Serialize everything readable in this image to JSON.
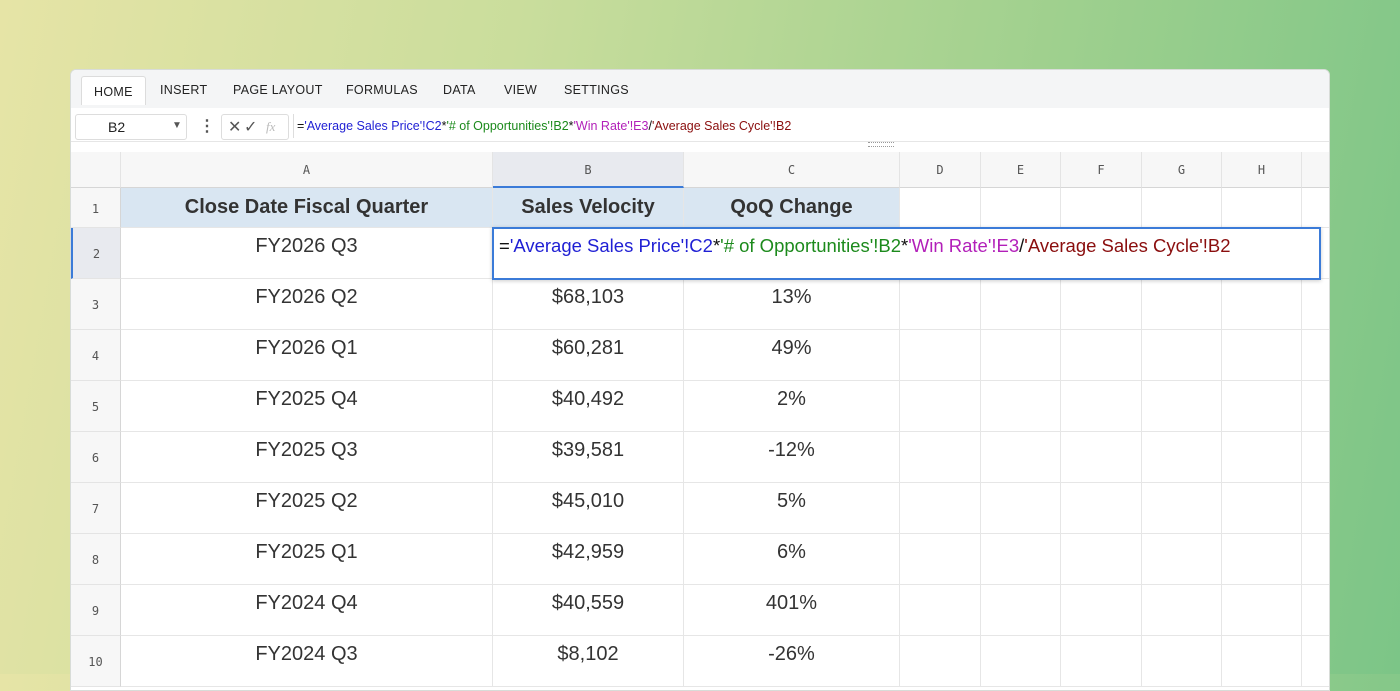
{
  "ribbon": {
    "tabs": [
      "HOME",
      "INSERT",
      "PAGE LAYOUT",
      "FORMULAS",
      "DATA",
      "VIEW",
      "SETTINGS"
    ]
  },
  "formula_bar": {
    "name_box": "B2",
    "fx_label": "fx",
    "formula": [
      "=",
      "'Average Sales Price'!C2",
      "*",
      "'# of Opportunities'!B2",
      "*",
      "'Win Rate'!E3",
      "/",
      "'Average Sales Cycle'!B2"
    ]
  },
  "grid": {
    "columns": [
      "A",
      "B",
      "C",
      "D",
      "E",
      "F",
      "G",
      "H"
    ],
    "row_numbers": [
      "1",
      "2",
      "3",
      "4",
      "5",
      "6",
      "7",
      "8",
      "9",
      "10"
    ]
  },
  "table": {
    "header": [
      "Close Date Fiscal Quarter",
      "Sales Velocity",
      "QoQ Change"
    ],
    "rows": [
      [
        "FY2026 Q3"
      ],
      [
        "FY2026 Q2",
        "$68,103",
        "13%"
      ],
      [
        "FY2026 Q1",
        "$60,281",
        "49%"
      ],
      [
        "FY2025 Q4",
        "$40,492",
        "2%"
      ],
      [
        "FY2025 Q3",
        "$39,581",
        "-12%"
      ],
      [
        "FY2025 Q2",
        "$45,010",
        "5%"
      ],
      [
        "FY2025 Q1",
        "$42,959",
        "6%"
      ],
      [
        "FY2024 Q4",
        "$40,559",
        "401%"
      ],
      [
        "FY2024 Q3",
        "$8,102",
        "-26%"
      ]
    ]
  }
}
